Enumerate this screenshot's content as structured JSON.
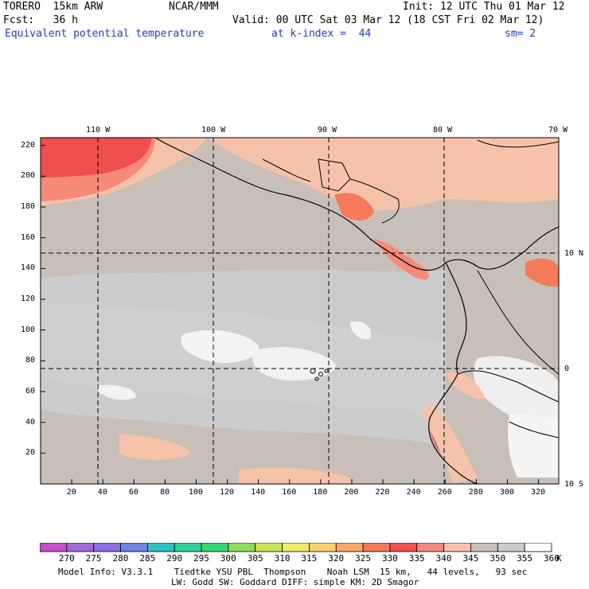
{
  "header": {
    "model": "TORERO  15km ARW",
    "center": "NCAR/MMM",
    "init": "Init: 12 UTC Thu 01 Mar 12",
    "fcst": "Fcst:   36 h",
    "valid": "Valid: 00 UTC Sat 03 Mar 12 (18 CST Fri 02 Mar 12)",
    "field": "Equivalent potential temperature",
    "level": "at k-index =  44",
    "smooth": "sm= 2"
  },
  "map": {
    "lon_labels": [
      "110 W",
      "100 W",
      "90 W",
      "80 W",
      "70 W"
    ],
    "lat_labels": [
      "10 N",
      "0",
      "10 S"
    ],
    "x_ticks": [
      "20",
      "40",
      "60",
      "80",
      "100",
      "120",
      "140",
      "160",
      "180",
      "200",
      "220",
      "240",
      "260",
      "280",
      "300",
      "320"
    ],
    "y_ticks": [
      "220",
      "200",
      "180",
      "160",
      "140",
      "120",
      "100",
      "80",
      "60",
      "40",
      "20"
    ]
  },
  "colorbar": {
    "unit": "K",
    "labels": [
      "270",
      "275",
      "280",
      "285",
      "290",
      "295",
      "300",
      "305",
      "310",
      "315",
      "320",
      "325",
      "330",
      "335",
      "340",
      "345",
      "350",
      "355",
      "360"
    ],
    "colors": [
      "#c74fc7",
      "#a66bd6",
      "#8a6fe6",
      "#6f86e6",
      "#2fc2c2",
      "#2ecf9a",
      "#3ad46f",
      "#8fdc5a",
      "#c9e65a",
      "#f0ea6a",
      "#f9cf6f",
      "#f9a86a",
      "#f47a5a",
      "#ee4f4f",
      "#f58a7a",
      "#f6c3aa",
      "#c8bfb8",
      "#cccccc",
      "#ffffff"
    ]
  },
  "footer": {
    "line1": "Model Info: V3.3.1    Tiedtke YSU PBL  Thompson    Noah LSM  15 km,   44 levels,   93 sec",
    "line2": "LW: Godd SW: Goddard DIFF: simple KM: 2D Smagor"
  }
}
